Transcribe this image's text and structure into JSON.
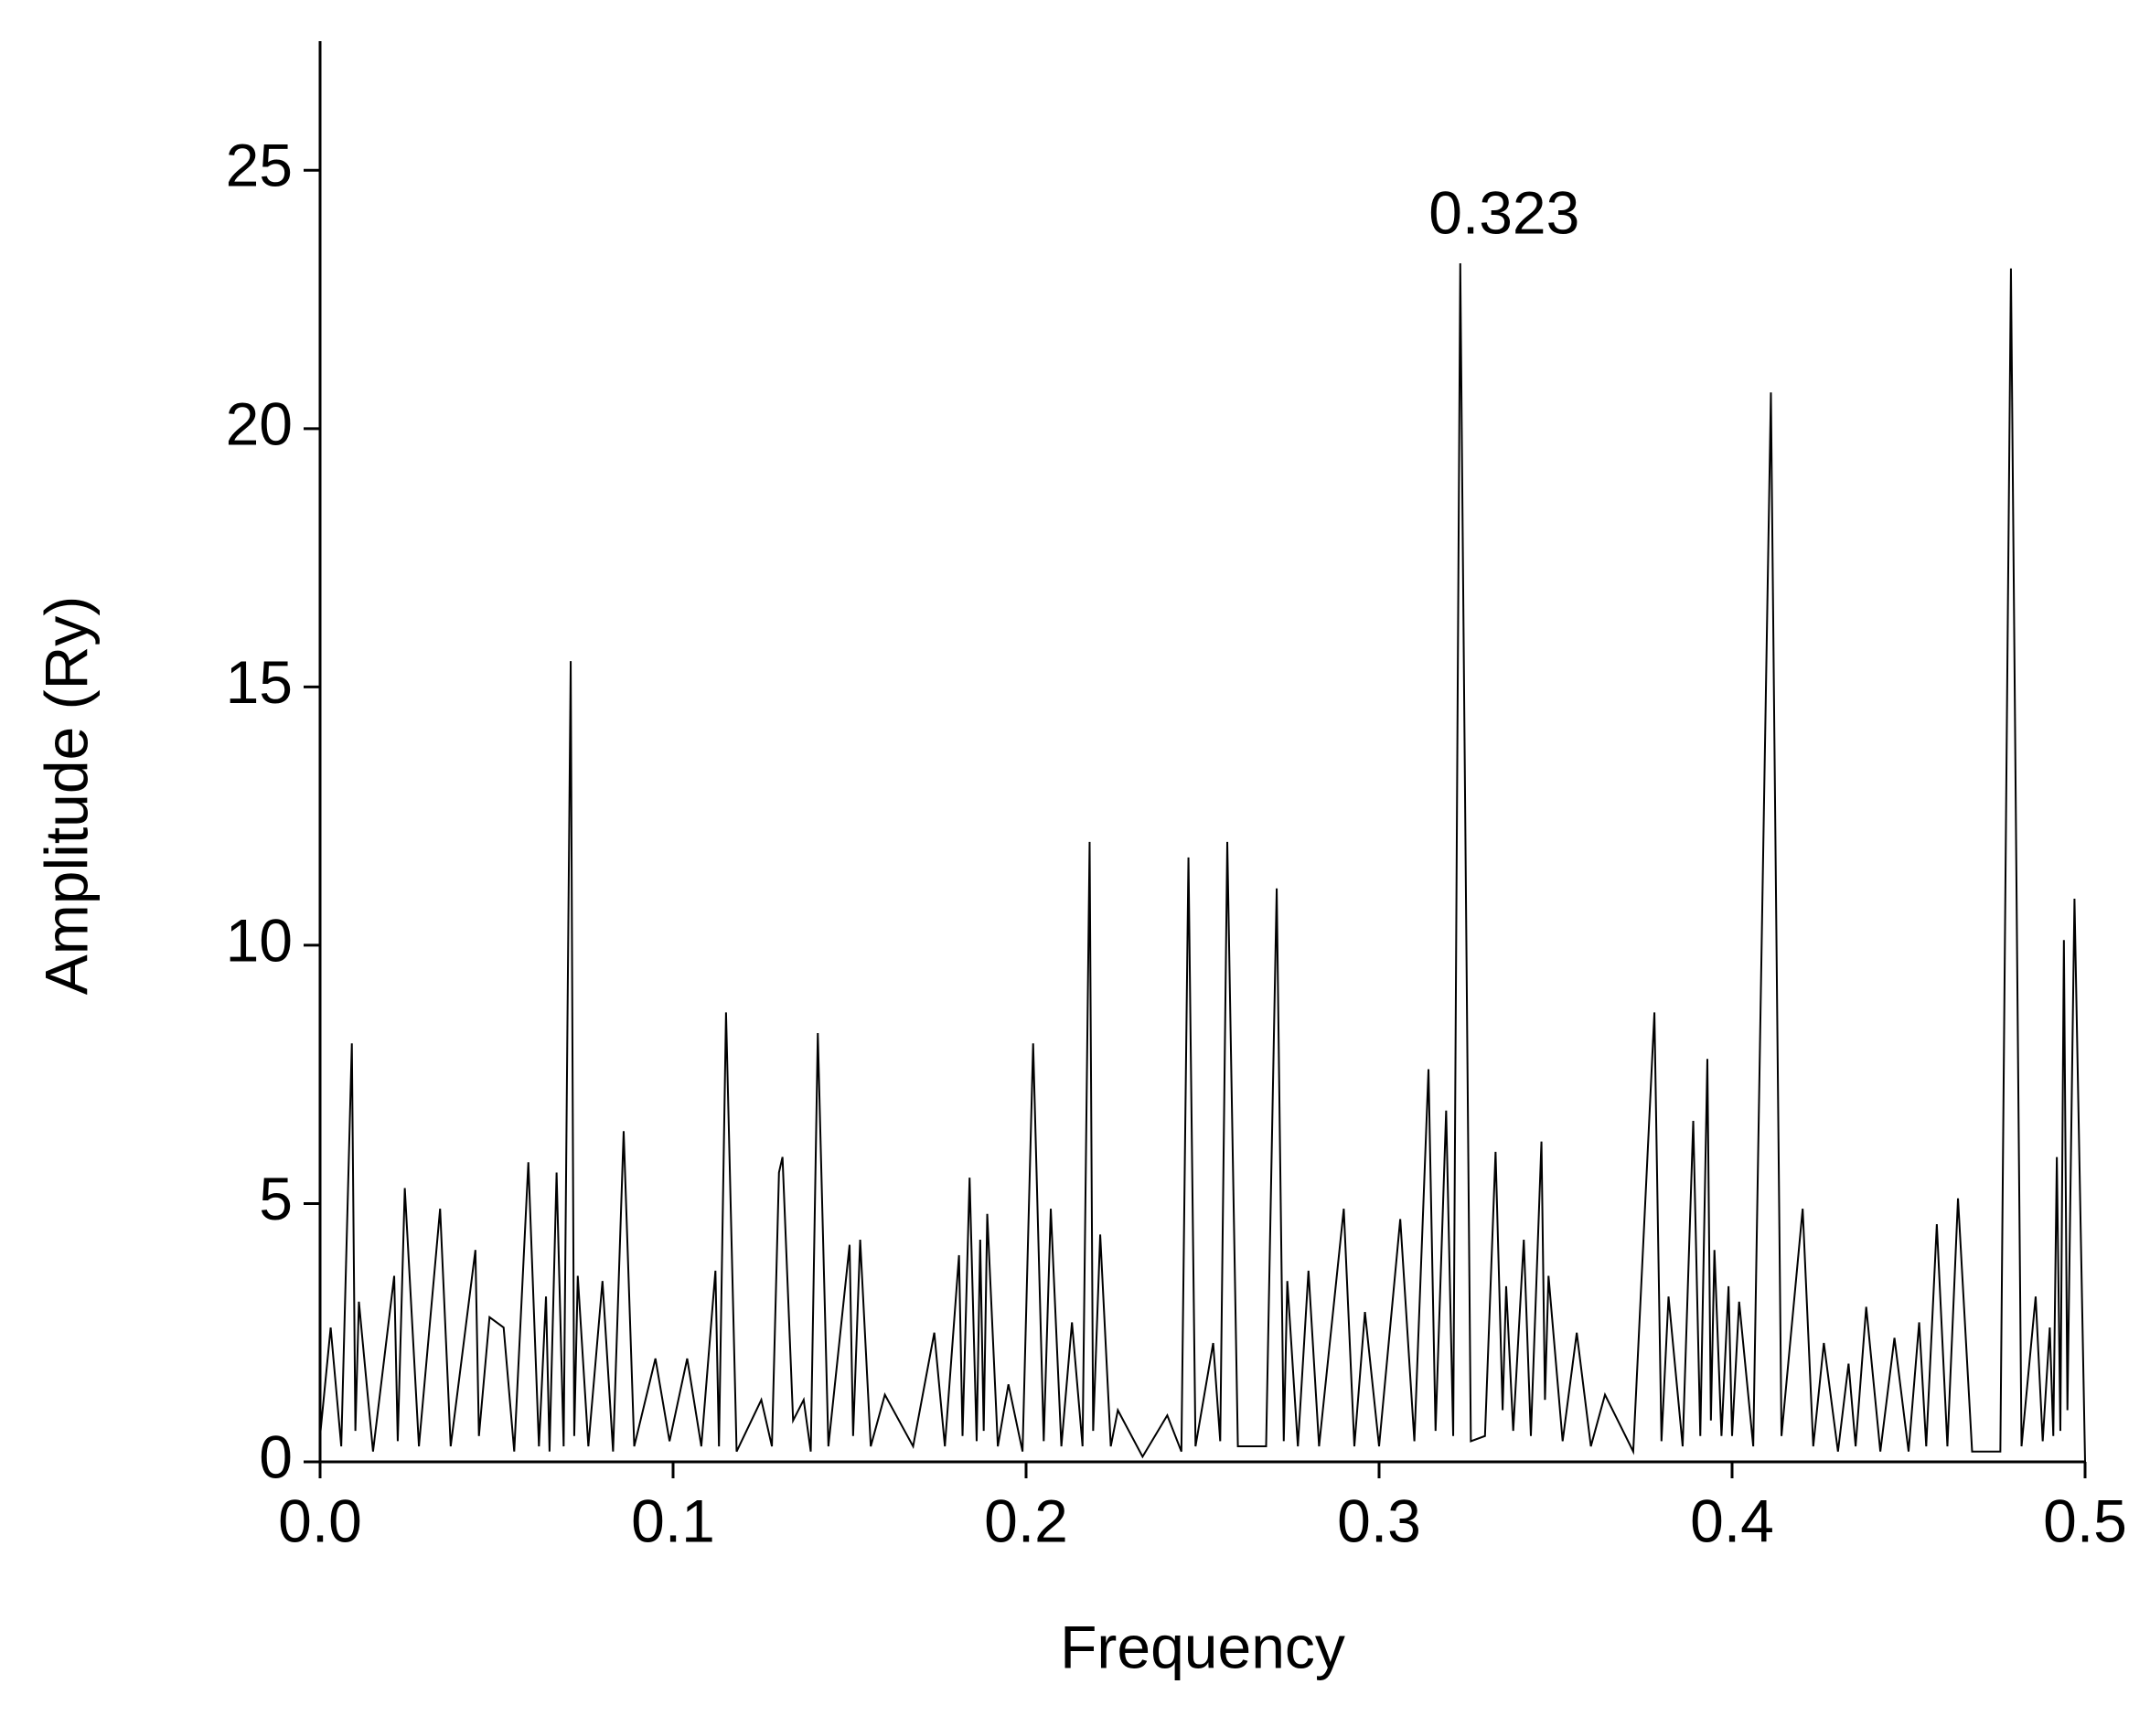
{
  "chart_data": {
    "type": "line",
    "x_label": "Frequency",
    "y_label": "Amplitude (Ry)",
    "annotation": "0.323",
    "xlim": [
      0,
      0.5
    ],
    "xticks": [
      {
        "value": 0,
        "label": "0.0"
      },
      0.1,
      0.2,
      0.3,
      0.4,
      0.5
    ],
    "ylim": [
      0,
      27.5
    ],
    "yticks": [
      0,
      5,
      10,
      15,
      20,
      25
    ],
    "grid": false,
    "series": [
      {
        "color": "#000000",
        "x": [
          0,
          0.003,
          0.006,
          0.009,
          0.01,
          0.011,
          0.015,
          0.021,
          0.022,
          0.024,
          0.028,
          0.034,
          0.037,
          0.044,
          0.045,
          0.048,
          0.052,
          0.055,
          0.059,
          0.062,
          0.064,
          0.065,
          0.067,
          0.069,
          0.071,
          0.072,
          0.073,
          0.076,
          0.08,
          0.083,
          0.086,
          0.089,
          0.095,
          0.099,
          0.104,
          0.108,
          0.112,
          0.113,
          0.115,
          0.118,
          0.125,
          0.128,
          0.13,
          0.131,
          0.134,
          0.137,
          0.139,
          0.141,
          0.144,
          0.15,
          0.151,
          0.153,
          0.156,
          0.16,
          0.168,
          0.174,
          0.177,
          0.181,
          0.182,
          0.184,
          0.186,
          0.187,
          0.188,
          0.189,
          0.192,
          0.195,
          0.199,
          0.202,
          0.205,
          0.207,
          0.21,
          0.213,
          0.216,
          0.218,
          0.219,
          0.221,
          0.224,
          0.226,
          0.233,
          0.24,
          0.244,
          0.246,
          0.248,
          0.253,
          0.255,
          0.257,
          0.26,
          0.268,
          0.271,
          0.273,
          0.274,
          0.277,
          0.28,
          0.283,
          0.29,
          0.293,
          0.296,
          0.3,
          0.306,
          0.31,
          0.314,
          0.316,
          0.319,
          0.321,
          0.323,
          0.326,
          0.33,
          0.333,
          0.335,
          0.336,
          0.338,
          0.341,
          0.343,
          0.346,
          0.347,
          0.348,
          0.352,
          0.356,
          0.36,
          0.364,
          0.372,
          0.378,
          0.38,
          0.382,
          0.386,
          0.389,
          0.391,
          0.393,
          0.394,
          0.395,
          0.397,
          0.399,
          0.4,
          0.402,
          0.406,
          0.411,
          0.414,
          0.42,
          0.423,
          0.426,
          0.43,
          0.433,
          0.435,
          0.438,
          0.442,
          0.446,
          0.45,
          0.453,
          0.455,
          0.458,
          0.461,
          0.464,
          0.468,
          0.476,
          0.479,
          0.482,
          0.486,
          0.488,
          0.49,
          0.491,
          0.492,
          0.493,
          0.494,
          0.495,
          0.497,
          0.5
        ],
        "values": [
          0.5,
          2.6,
          0.3,
          8.1,
          0.6,
          3.1,
          0.2,
          3.6,
          0.4,
          5.3,
          0.3,
          4.9,
          0.3,
          4.1,
          0.5,
          2.8,
          2.6,
          0.2,
          5.8,
          0.3,
          3.2,
          0.2,
          5.6,
          0.3,
          15.5,
          0.5,
          3.6,
          0.3,
          3.5,
          0.2,
          6.4,
          0.3,
          2.0,
          0.4,
          2.0,
          0.3,
          3.7,
          0.3,
          8.7,
          0.2,
          1.2,
          0.3,
          5.6,
          5.9,
          0.8,
          1.2,
          0.2,
          8.3,
          0.3,
          4.2,
          0.5,
          4.3,
          0.3,
          1.3,
          0.3,
          2.5,
          0.3,
          4.0,
          0.5,
          5.5,
          0.4,
          4.3,
          0.6,
          4.8,
          0.3,
          1.5,
          0.2,
          8.1,
          0.4,
          4.9,
          0.3,
          2.7,
          0.3,
          12.0,
          0.6,
          4.4,
          0.3,
          1.0,
          0.1,
          0.9,
          0.2,
          11.7,
          0.3,
          2.3,
          0.4,
          12.0,
          0.3,
          0.3,
          11.1,
          0.4,
          3.5,
          0.3,
          3.7,
          0.3,
          4.9,
          0.3,
          2.9,
          0.3,
          4.7,
          0.4,
          7.6,
          0.6,
          6.8,
          0.5,
          23.2,
          0.4,
          0.5,
          6.0,
          1.0,
          3.4,
          0.6,
          4.3,
          0.5,
          6.2,
          1.2,
          3.6,
          0.4,
          2.5,
          0.3,
          1.3,
          0.2,
          8.7,
          0.4,
          3.2,
          0.3,
          6.6,
          0.5,
          7.8,
          0.8,
          4.1,
          0.5,
          3.4,
          0.5,
          3.1,
          0.3,
          20.7,
          0.5,
          4.9,
          0.3,
          2.3,
          0.2,
          1.9,
          0.3,
          3.0,
          0.2,
          2.4,
          0.2,
          2.7,
          0.3,
          4.6,
          0.3,
          5.1,
          0.2,
          0.2,
          23.1,
          0.3,
          3.2,
          0.4,
          2.6,
          0.5,
          5.9,
          0.6,
          10.1,
          1.0,
          10.9,
          0
        ]
      }
    ]
  }
}
